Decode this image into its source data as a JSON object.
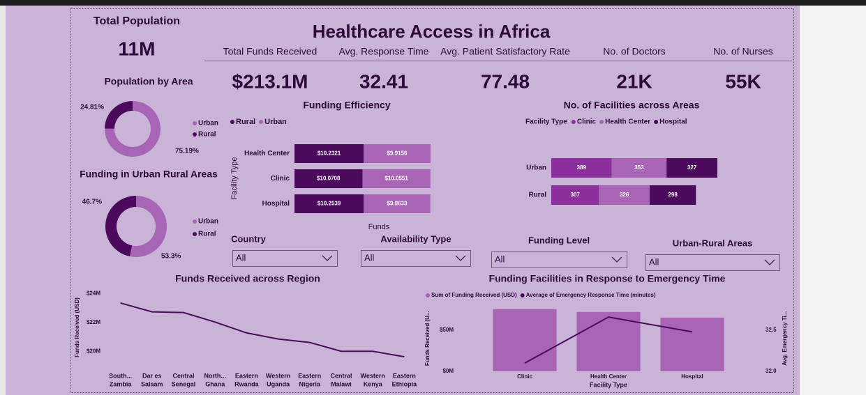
{
  "header": {
    "title": "Healthcare Access in Africa"
  },
  "kpis": [
    {
      "label": "Total Population",
      "value": "11M"
    },
    {
      "label": "Total Funds Received",
      "value": "$213.1M"
    },
    {
      "label": "Avg. Response Time",
      "value": "32.41"
    },
    {
      "label": "Avg. Patient Satisfactory Rate",
      "value": "77.48"
    },
    {
      "label": "No. of Doctors",
      "value": "21K"
    },
    {
      "label": "No. of Nurses",
      "value": "55K"
    }
  ],
  "filters": [
    {
      "label": "Country",
      "value": "All"
    },
    {
      "label": "Availability Type",
      "value": "All"
    },
    {
      "label": "Funding Level",
      "value": "All"
    },
    {
      "label": "Urban-Rural Areas",
      "value": "All"
    }
  ],
  "chart_data": [
    {
      "type": "donut",
      "title": "Population by Area",
      "categories": [
        "Urban",
        "Rural"
      ],
      "values": [
        75.19,
        24.81
      ],
      "value_labels": [
        "75.19%",
        "24.81%"
      ],
      "colors": [
        "#a865b5",
        "#4b0a5c"
      ]
    },
    {
      "type": "donut",
      "title": "Funding in Urban Rural Areas",
      "categories": [
        "Urban",
        "Rural"
      ],
      "values": [
        53.3,
        46.7
      ],
      "value_labels": [
        "53.3%",
        "46.7%"
      ],
      "colors": [
        "#a865b5",
        "#4b0a5c"
      ]
    },
    {
      "type": "hbar-stacked",
      "title": "Funding Efficiency",
      "categories": [
        "Health Center",
        "Clinic",
        "Hospital"
      ],
      "x_label": "Funds",
      "y_label": "Facility Type",
      "series": [
        {
          "name": "Rural",
          "color": "#4b0a5c",
          "values": [
            10.2321,
            10.0708,
            10.2539
          ],
          "value_labels": [
            "$10.2321",
            "$10.0708",
            "$10.2539"
          ]
        },
        {
          "name": "Urban",
          "color": "#a865b5",
          "values": [
            9.9156,
            10.0551,
            9.8633
          ],
          "value_labels": [
            "$9.9156",
            "$10.0551",
            "$9.8633"
          ]
        }
      ]
    },
    {
      "type": "hbar-stacked",
      "title": "No. of Facilities across Areas",
      "legend_title": "Facility Type",
      "categories": [
        "Urban",
        "Rural"
      ],
      "series": [
        {
          "name": "Clinic",
          "color": "#8b2f9c",
          "values": [
            389,
            307
          ]
        },
        {
          "name": "Health Center",
          "color": "#a865b5",
          "values": [
            353,
            326
          ]
        },
        {
          "name": "Hospital",
          "color": "#4b0a5c",
          "values": [
            327,
            298
          ]
        }
      ]
    },
    {
      "type": "line",
      "title": "Funds Received across Region",
      "y_label": "Funds Received (USD)",
      "color": "#4b0a5c",
      "categories": [
        [
          "South...",
          "Zambia"
        ],
        [
          "Dar es",
          "Salaam"
        ],
        [
          "Central",
          "Senegal"
        ],
        [
          "North...",
          "Ghana"
        ],
        [
          "Eastern",
          "Rwanda"
        ],
        [
          "Western",
          "Uganda"
        ],
        [
          "Eastern",
          "Nigeria"
        ],
        [
          "Central",
          "Malawi"
        ],
        [
          "Western",
          "Kenya"
        ],
        [
          "Eastern",
          "Ethiopia"
        ]
      ],
      "values": [
        23340000,
        22730000,
        22680000,
        22020000,
        21270000,
        20850000,
        20610000,
        20000000,
        20000000,
        19620000
      ],
      "ylim": [
        19000000,
        24300000
      ],
      "yticks": [
        {
          "value": 20000000,
          "label": "$20M"
        },
        {
          "value": 22000000,
          "label": "$22M"
        },
        {
          "value": 24000000,
          "label": "$24M"
        }
      ]
    },
    {
      "type": "bar-line",
      "title": "Funding Facilities in Response to Emergency Time",
      "x_label": "Facility Type",
      "y_label": "Funds Received (U...",
      "y2_label": "Avg. Emergency Ti...",
      "categories": [
        "Clinic",
        "Health Center",
        "Hospital"
      ],
      "series": [
        {
          "name": "Sum of Funding Received (USD)",
          "type": "bar",
          "color": "#a865b5",
          "values": [
            75600000,
            72200000,
            65300000
          ]
        },
        {
          "name": "Average of Emergency Response Time (minutes)",
          "type": "line",
          "axis": "y2",
          "color": "#4b0a5c",
          "values": [
            32.1,
            32.66,
            32.48
          ]
        }
      ],
      "ylim": [
        0,
        80000000
      ],
      "yticks": [
        {
          "value": 0,
          "label": "$0M"
        },
        {
          "value": 50000000,
          "label": "$50M"
        }
      ],
      "y2lim": [
        32,
        32.8
      ],
      "y2ticks": [
        {
          "value": 32,
          "label": "32.0"
        },
        32.5
      ]
    }
  ]
}
